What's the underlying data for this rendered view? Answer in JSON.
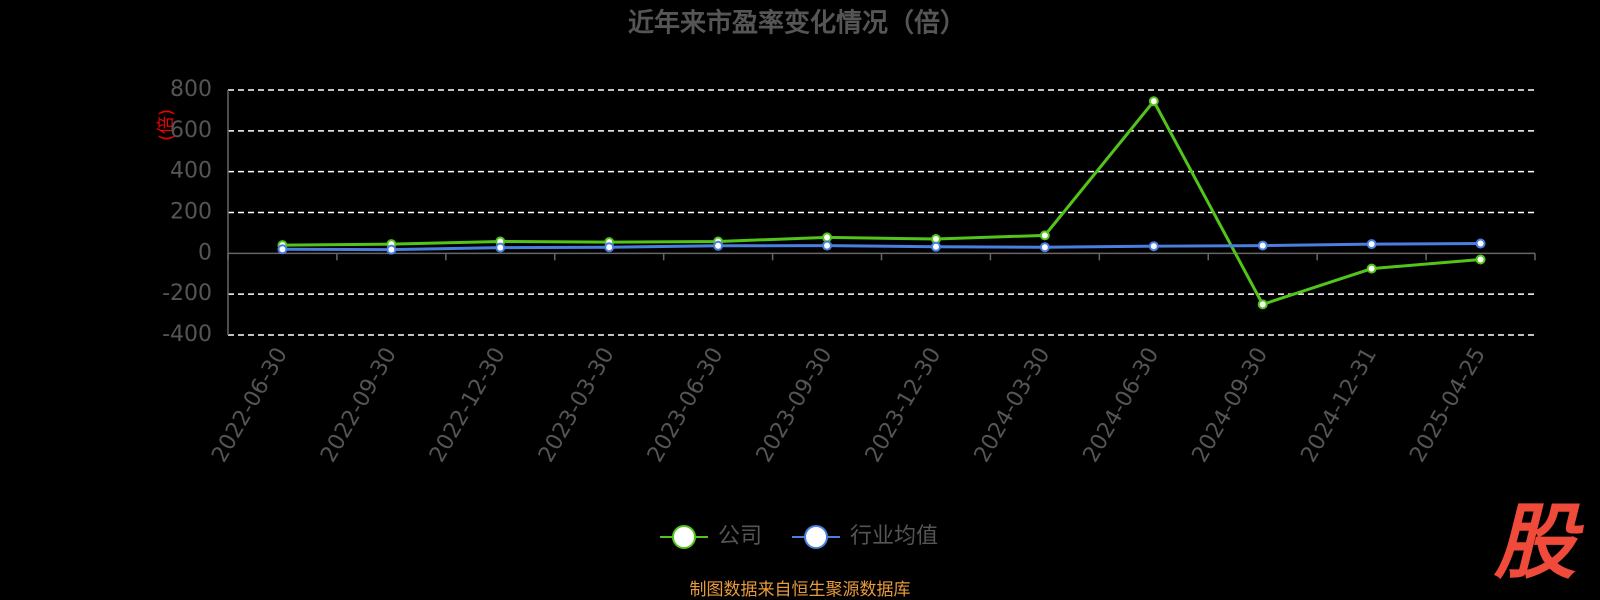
{
  "chart_data": {
    "type": "line",
    "title": "近年来市盈率变化情况（倍）",
    "y_label": "(倍)",
    "categories": [
      "2022-06-30",
      "2022-09-30",
      "2022-12-30",
      "2023-03-30",
      "2023-06-30",
      "2023-09-30",
      "2023-12-30",
      "2024-03-30",
      "2024-06-30",
      "2024-09-30",
      "2024-12-31",
      "2025-04-25"
    ],
    "series": [
      {
        "name": "公司",
        "color": "#52c41a",
        "values": [
          40,
          45,
          58,
          55,
          58,
          78,
          70,
          88,
          745,
          -250,
          -75,
          -30
        ]
      },
      {
        "name": "行业均值",
        "color": "#4a7fe0",
        "values": [
          20,
          18,
          28,
          30,
          37,
          38,
          32,
          30,
          35,
          38,
          45,
          48
        ]
      }
    ],
    "ylim": [
      -400,
      800
    ],
    "yticks": [
      -400,
      -200,
      0,
      200,
      400,
      600,
      800
    ],
    "grid": true,
    "legend": "bottom",
    "source": "制图数据来自恒生聚源数据库",
    "logo": "股"
  }
}
